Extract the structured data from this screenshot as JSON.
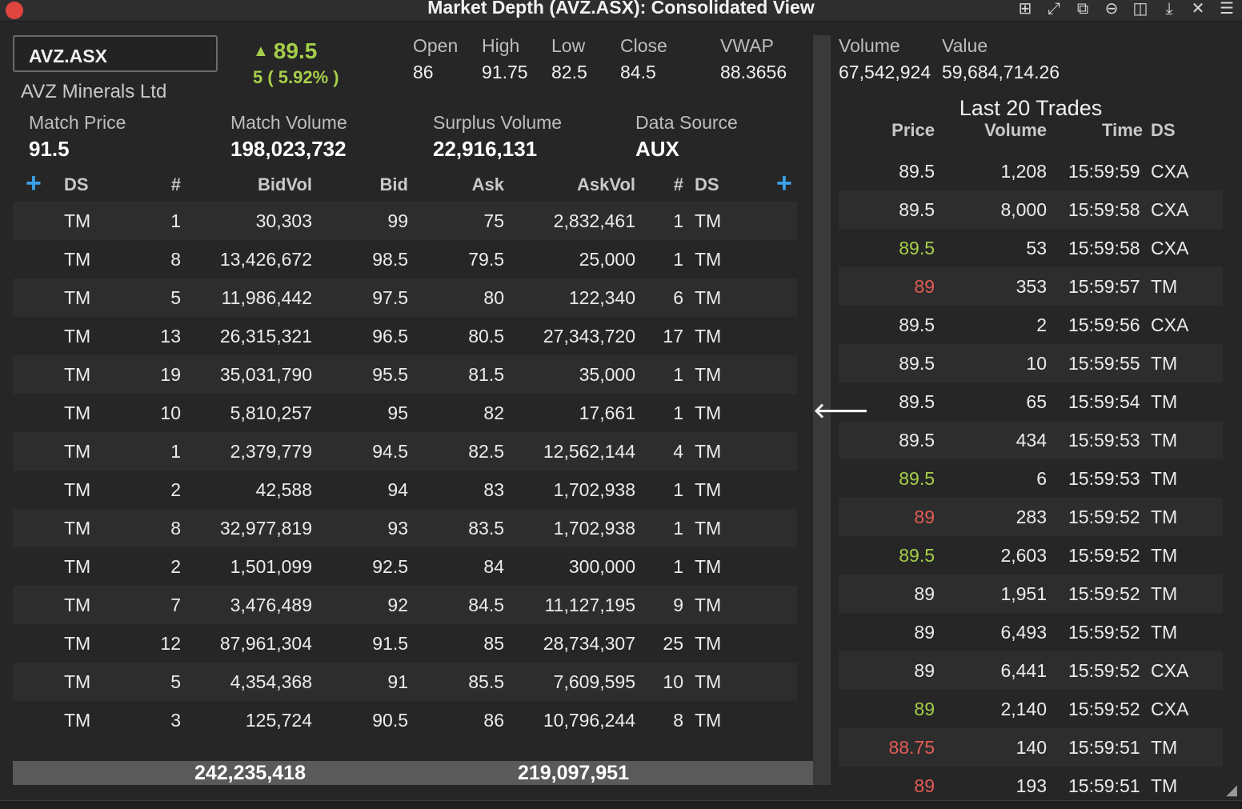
{
  "window": {
    "title": "Market Depth (AVZ.ASX): Consolidated View",
    "icons": [
      "add-icon",
      "expand-icon",
      "popout-icon",
      "minimize-icon",
      "split-icon",
      "download-icon",
      "close-icon",
      "menu-icon"
    ]
  },
  "quote": {
    "symbol": "AVZ.ASX",
    "company": "AVZ Minerals Ltd",
    "last": "89.5",
    "change": "5 ( 5.92% )",
    "stats": [
      {
        "label": "Open",
        "value": "86"
      },
      {
        "label": "High",
        "value": "91.75"
      },
      {
        "label": "Low",
        "value": "82.5"
      },
      {
        "label": "Close",
        "value": "84.5"
      },
      {
        "label": "VWAP",
        "value": "88.3656"
      },
      {
        "label": "Volume",
        "value": "67,542,924"
      },
      {
        "label": "Value",
        "value": "59,684,714.26"
      }
    ],
    "match_price_label": "Match Price",
    "match_price": "91.5",
    "match_volume_label": "Match Volume",
    "match_volume": "198,023,732",
    "surplus_volume_label": "Surplus Volume",
    "surplus_volume": "22,916,131",
    "data_source_label": "Data Source",
    "data_source": "AUX"
  },
  "depth": {
    "headers": {
      "ds_left": "DS",
      "count_left": "#",
      "bidvol": "BidVol",
      "bid": "Bid",
      "ask": "Ask",
      "askvol": "AskVol",
      "count_right": "#",
      "ds_right": "DS"
    },
    "rows": [
      {
        "ds": "TM",
        "bn": "1",
        "bidvol": "30,303",
        "bid": "99",
        "ask": "75",
        "askvol": "2,832,461",
        "an": "1",
        "ads": "TM"
      },
      {
        "ds": "TM",
        "bn": "8",
        "bidvol": "13,426,672",
        "bid": "98.5",
        "ask": "79.5",
        "askvol": "25,000",
        "an": "1",
        "ads": "TM"
      },
      {
        "ds": "TM",
        "bn": "5",
        "bidvol": "11,986,442",
        "bid": "97.5",
        "ask": "80",
        "askvol": "122,340",
        "an": "6",
        "ads": "TM"
      },
      {
        "ds": "TM",
        "bn": "13",
        "bidvol": "26,315,321",
        "bid": "96.5",
        "ask": "80.5",
        "askvol": "27,343,720",
        "an": "17",
        "ads": "TM"
      },
      {
        "ds": "TM",
        "bn": "19",
        "bidvol": "35,031,790",
        "bid": "95.5",
        "ask": "81.5",
        "askvol": "35,000",
        "an": "1",
        "ads": "TM"
      },
      {
        "ds": "TM",
        "bn": "10",
        "bidvol": "5,810,257",
        "bid": "95",
        "ask": "82",
        "askvol": "17,661",
        "an": "1",
        "ads": "TM"
      },
      {
        "ds": "TM",
        "bn": "1",
        "bidvol": "2,379,779",
        "bid": "94.5",
        "ask": "82.5",
        "askvol": "12,562,144",
        "an": "4",
        "ads": "TM"
      },
      {
        "ds": "TM",
        "bn": "2",
        "bidvol": "42,588",
        "bid": "94",
        "ask": "83",
        "askvol": "1,702,938",
        "an": "1",
        "ads": "TM"
      },
      {
        "ds": "TM",
        "bn": "8",
        "bidvol": "32,977,819",
        "bid": "93",
        "ask": "83.5",
        "askvol": "1,702,938",
        "an": "1",
        "ads": "TM"
      },
      {
        "ds": "TM",
        "bn": "2",
        "bidvol": "1,501,099",
        "bid": "92.5",
        "ask": "84",
        "askvol": "300,000",
        "an": "1",
        "ads": "TM"
      },
      {
        "ds": "TM",
        "bn": "7",
        "bidvol": "3,476,489",
        "bid": "92",
        "ask": "84.5",
        "askvol": "11,127,195",
        "an": "9",
        "ads": "TM"
      },
      {
        "ds": "TM",
        "bn": "12",
        "bidvol": "87,961,304",
        "bid": "91.5",
        "ask": "85",
        "askvol": "28,734,307",
        "an": "25",
        "ads": "TM"
      },
      {
        "ds": "TM",
        "bn": "5",
        "bidvol": "4,354,368",
        "bid": "91",
        "ask": "85.5",
        "askvol": "7,609,595",
        "an": "10",
        "ads": "TM"
      },
      {
        "ds": "TM",
        "bn": "3",
        "bidvol": "125,724",
        "bid": "90.5",
        "ask": "86",
        "askvol": "10,796,244",
        "an": "8",
        "ads": "TM"
      }
    ],
    "total_bidvol": "242,235,418",
    "total_askvol": "219,097,951"
  },
  "trades": {
    "title": "Last 20 Trades",
    "headers": {
      "price": "Price",
      "volume": "Volume",
      "time": "Time",
      "ds": "DS"
    },
    "rows": [
      {
        "price": "89.5",
        "dir": "neutral",
        "volume": "1,208",
        "time": "15:59:59",
        "ds": "CXA"
      },
      {
        "price": "89.5",
        "dir": "neutral",
        "volume": "8,000",
        "time": "15:59:58",
        "ds": "CXA"
      },
      {
        "price": "89.5",
        "dir": "up",
        "volume": "53",
        "time": "15:59:58",
        "ds": "CXA"
      },
      {
        "price": "89",
        "dir": "down",
        "volume": "353",
        "time": "15:59:57",
        "ds": "TM"
      },
      {
        "price": "89.5",
        "dir": "neutral",
        "volume": "2",
        "time": "15:59:56",
        "ds": "CXA"
      },
      {
        "price": "89.5",
        "dir": "neutral",
        "volume": "10",
        "time": "15:59:55",
        "ds": "TM"
      },
      {
        "price": "89.5",
        "dir": "neutral",
        "volume": "65",
        "time": "15:59:54",
        "ds": "TM"
      },
      {
        "price": "89.5",
        "dir": "neutral",
        "volume": "434",
        "time": "15:59:53",
        "ds": "TM"
      },
      {
        "price": "89.5",
        "dir": "up",
        "volume": "6",
        "time": "15:59:53",
        "ds": "TM"
      },
      {
        "price": "89",
        "dir": "down",
        "volume": "283",
        "time": "15:59:52",
        "ds": "TM"
      },
      {
        "price": "89.5",
        "dir": "up",
        "volume": "2,603",
        "time": "15:59:52",
        "ds": "TM"
      },
      {
        "price": "89",
        "dir": "neutral",
        "volume": "1,951",
        "time": "15:59:52",
        "ds": "TM"
      },
      {
        "price": "89",
        "dir": "neutral",
        "volume": "6,493",
        "time": "15:59:52",
        "ds": "TM"
      },
      {
        "price": "89",
        "dir": "neutral",
        "volume": "6,441",
        "time": "15:59:52",
        "ds": "CXA"
      },
      {
        "price": "89",
        "dir": "up",
        "volume": "2,140",
        "time": "15:59:52",
        "ds": "CXA"
      },
      {
        "price": "88.75",
        "dir": "down",
        "volume": "140",
        "time": "15:59:51",
        "ds": "TM"
      },
      {
        "price": "89",
        "dir": "down",
        "volume": "193",
        "time": "15:59:51",
        "ds": "TM"
      }
    ]
  },
  "colors": {
    "up": "#a5cf4a",
    "down": "#e35c55",
    "accent": "#3aa0e8",
    "background": "#262626"
  }
}
